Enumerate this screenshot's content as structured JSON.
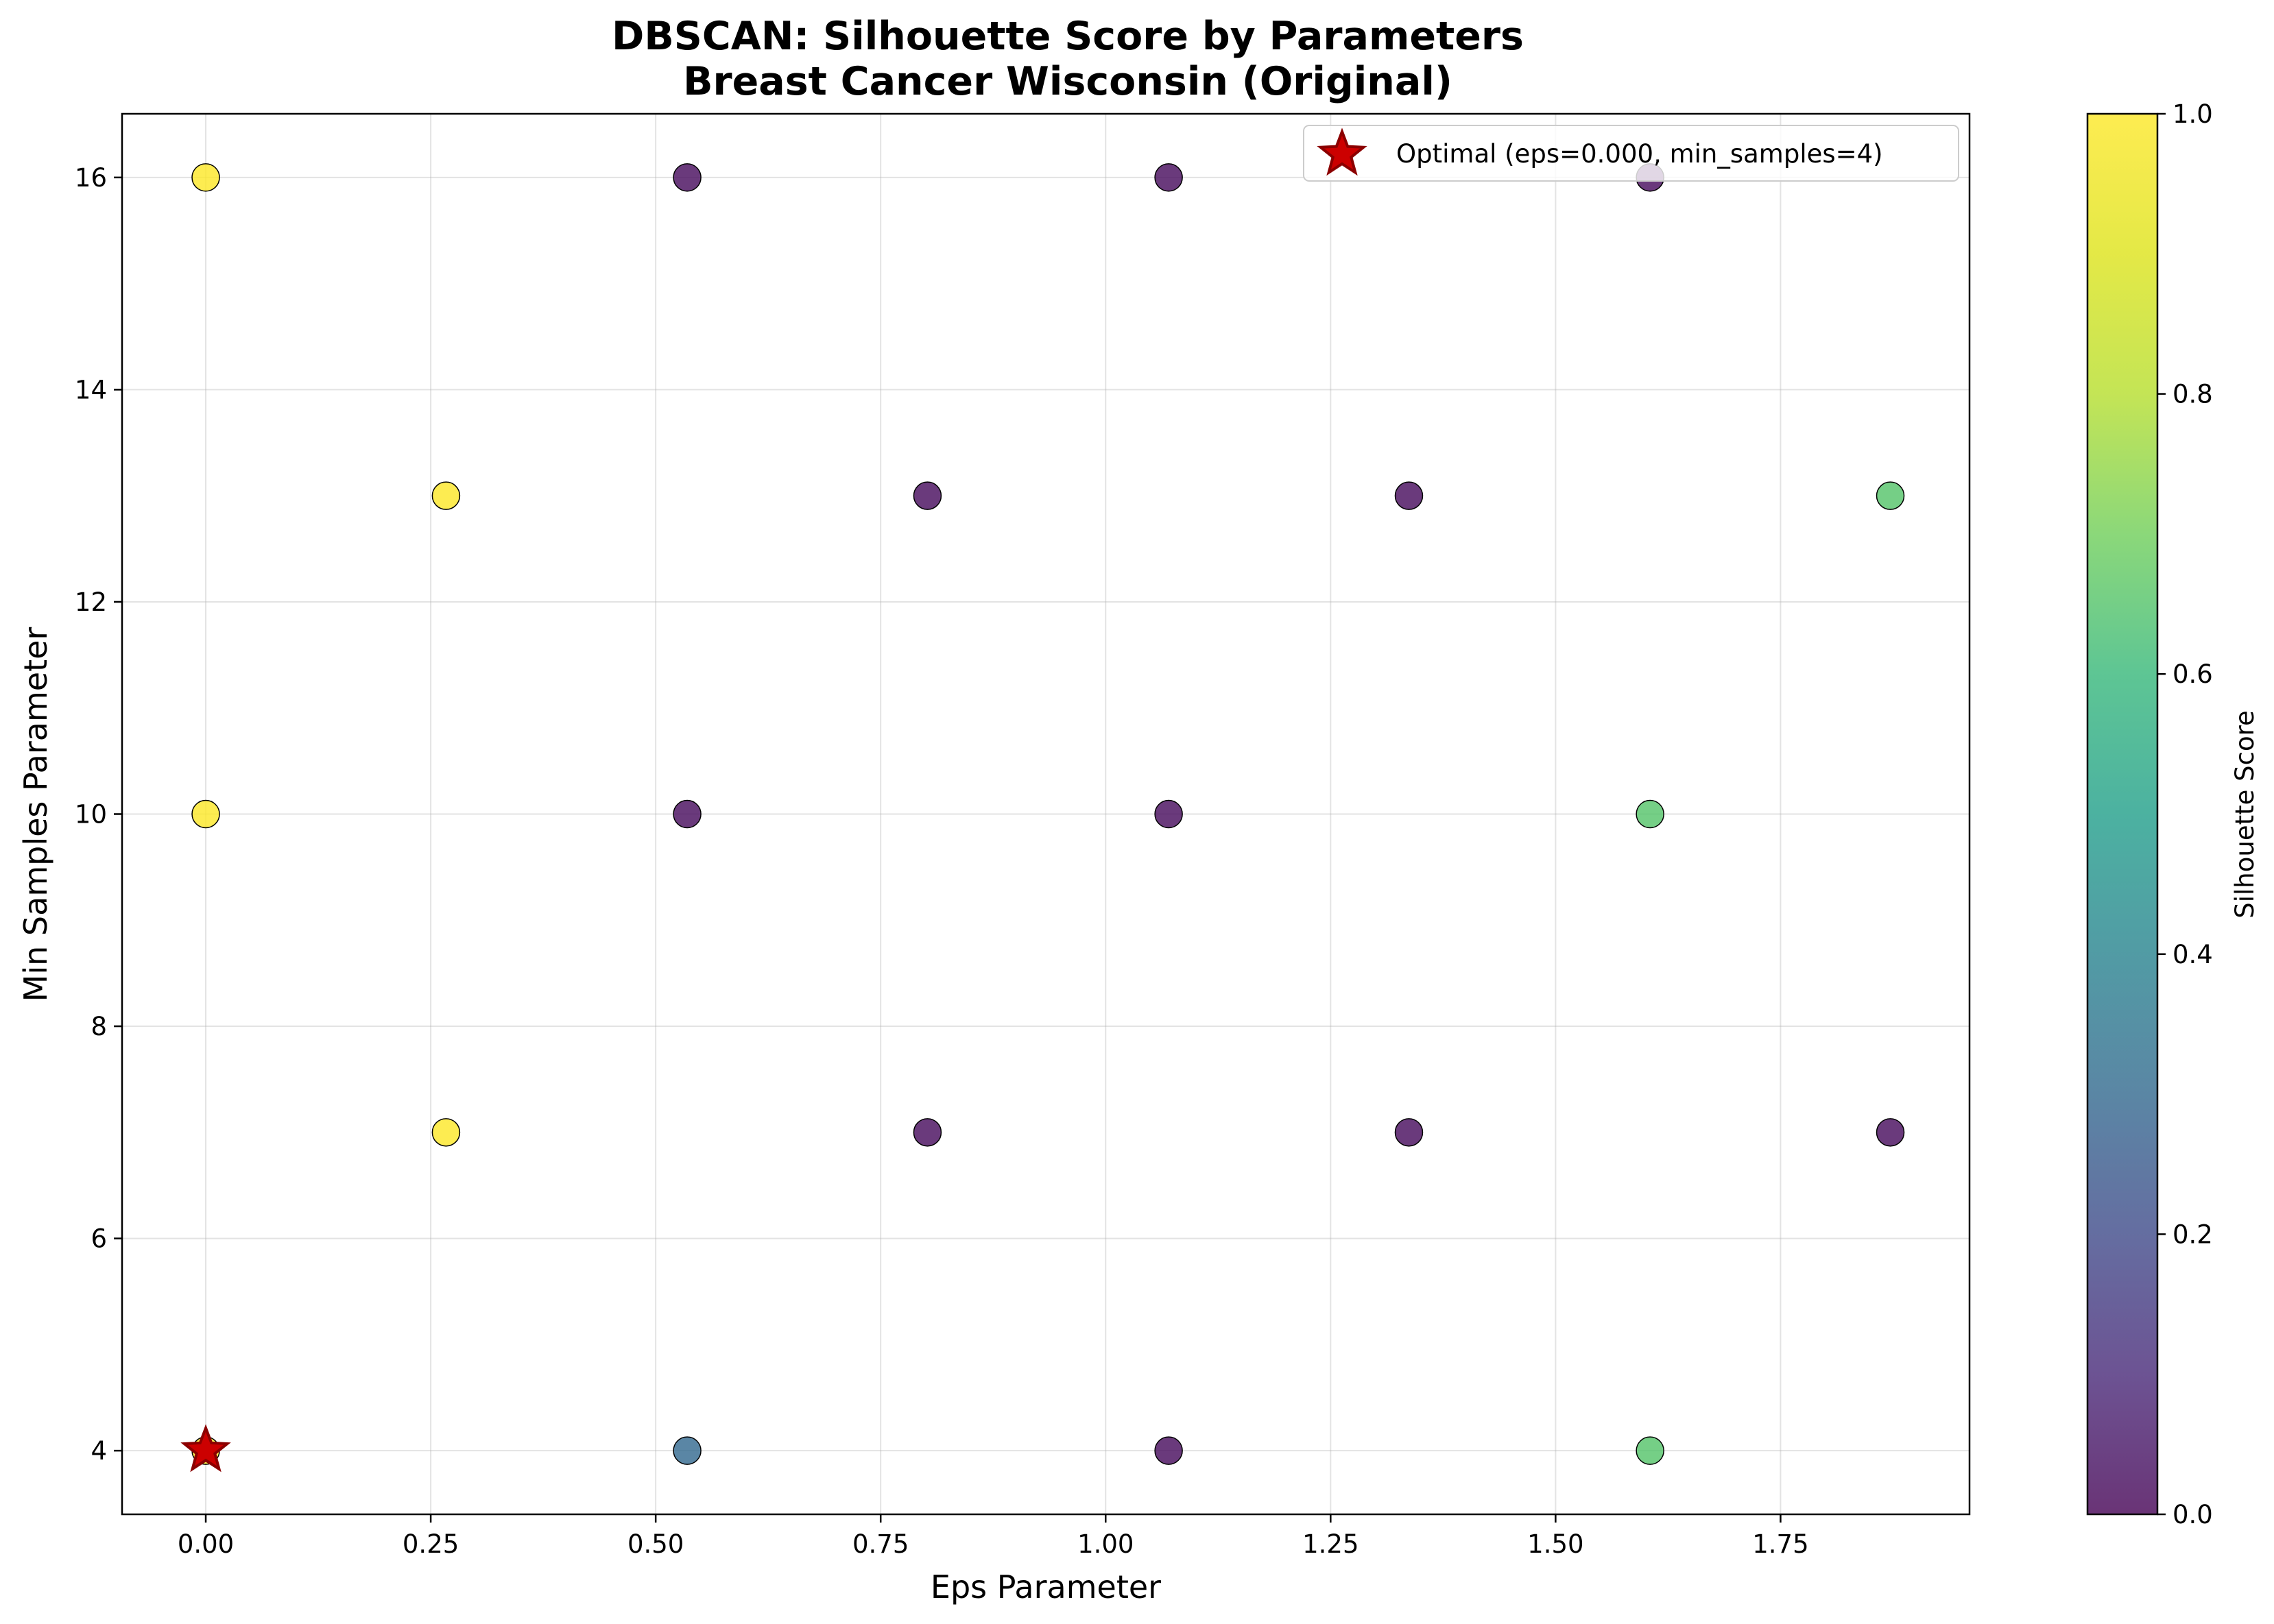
{
  "chart_data": {
    "type": "scatter",
    "title": "DBSCAN: Silhouette Score by Parameters",
    "subtitle": "Breast Cancer Wisconsin (Original)",
    "xlabel": "Eps Parameter",
    "ylabel": "Min Samples Parameter",
    "xlim": [
      -0.093,
      1.96
    ],
    "ylim": [
      3.4,
      16.6
    ],
    "xticks": [
      0.0,
      0.25,
      0.5,
      0.75,
      1.0,
      1.25,
      1.5,
      1.75
    ],
    "xtick_labels": [
      "0.00",
      "0.25",
      "0.50",
      "0.75",
      "1.00",
      "1.25",
      "1.50",
      "1.75"
    ],
    "yticks": [
      4,
      6,
      8,
      10,
      12,
      14,
      16
    ],
    "ytick_labels": [
      "4",
      "6",
      "8",
      "10",
      "12",
      "14",
      "16"
    ],
    "grid": true,
    "colormap": "viridis",
    "colorbar": {
      "label": "Silhouette Score",
      "range": [
        0.0,
        1.0
      ],
      "ticks": [
        0.0,
        0.2,
        0.4,
        0.6,
        0.8,
        1.0
      ],
      "tick_labels": [
        "0.0",
        "0.2",
        "0.4",
        "0.6",
        "0.8",
        "1.0"
      ]
    },
    "points": [
      {
        "x": 0.0,
        "y": 4,
        "score": 1.0
      },
      {
        "x": 0.0,
        "y": 10,
        "score": 1.0
      },
      {
        "x": 0.0,
        "y": 16,
        "score": 1.0
      },
      {
        "x": 0.267,
        "y": 7,
        "score": 1.0
      },
      {
        "x": 0.267,
        "y": 13,
        "score": 1.0
      },
      {
        "x": 0.535,
        "y": 4,
        "score": 0.3
      },
      {
        "x": 0.535,
        "y": 10,
        "score": 0.02
      },
      {
        "x": 0.535,
        "y": 16,
        "score": 0.02
      },
      {
        "x": 0.802,
        "y": 7,
        "score": 0.02
      },
      {
        "x": 0.802,
        "y": 13,
        "score": 0.02
      },
      {
        "x": 1.07,
        "y": 4,
        "score": 0.02
      },
      {
        "x": 1.07,
        "y": 10,
        "score": 0.02
      },
      {
        "x": 1.07,
        "y": 16,
        "score": 0.02
      },
      {
        "x": 1.337,
        "y": 7,
        "score": 0.02
      },
      {
        "x": 1.337,
        "y": 13,
        "score": 0.02
      },
      {
        "x": 1.605,
        "y": 4,
        "score": 0.65
      },
      {
        "x": 1.605,
        "y": 10,
        "score": 0.65
      },
      {
        "x": 1.605,
        "y": 16,
        "score": 0.02
      },
      {
        "x": 1.872,
        "y": 7,
        "score": 0.02
      },
      {
        "x": 1.872,
        "y": 13,
        "score": 0.65
      }
    ],
    "optimal": {
      "x": 0.0,
      "y": 4,
      "color": "#cc0000",
      "edge_color": "#8b0000"
    },
    "legend": {
      "location": "upper right",
      "entries": [
        "Optimal (eps=0.000, min_samples=4)"
      ]
    }
  }
}
